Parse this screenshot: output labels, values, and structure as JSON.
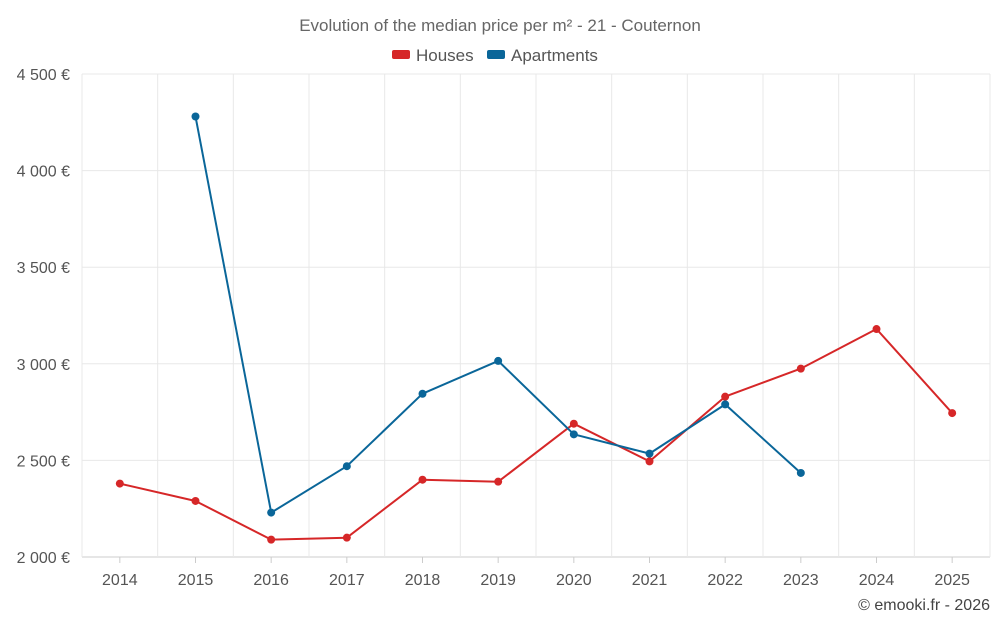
{
  "chart_data": {
    "type": "line",
    "title": "Evolution of the median price per m² - 21 - Couternon",
    "categories": [
      "2014",
      "2015",
      "2016",
      "2017",
      "2018",
      "2019",
      "2020",
      "2021",
      "2022",
      "2023",
      "2024",
      "2025"
    ],
    "series": [
      {
        "name": "Houses",
        "color": "#d62728",
        "values": [
          2380,
          2290,
          2090,
          2100,
          2400,
          2390,
          2690,
          2495,
          2830,
          2975,
          3180,
          2745
        ]
      },
      {
        "name": "Apartments",
        "color": "#0a6699",
        "values": [
          null,
          4280,
          2230,
          2470,
          2845,
          3015,
          2635,
          2535,
          2790,
          2435,
          null,
          null
        ]
      }
    ],
    "y_ticks": [
      "2 000 €",
      "2 500 €",
      "3 000 €",
      "3 500 €",
      "4 000 €",
      "4 500 €"
    ],
    "y_tick_values": [
      2000,
      2500,
      3000,
      3500,
      4000,
      4500
    ],
    "ylim": [
      2000,
      4500
    ],
    "legend_position": "top-center",
    "grid": true
  },
  "credit": "© emooki.fr - 2026"
}
